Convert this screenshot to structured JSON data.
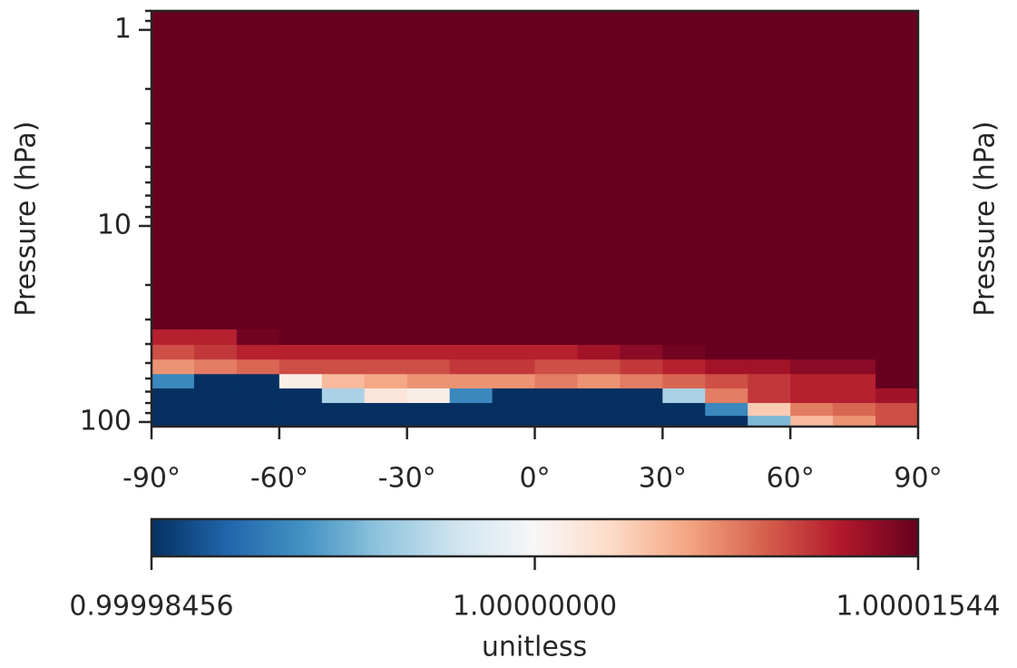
{
  "chart_data": {
    "type": "heatmap",
    "ylabel": "Pressure (hPa)",
    "y2label": "Pressure (hPa)",
    "colorbar_label": "unitless",
    "x_bins": [
      -90,
      -80,
      -70,
      -60,
      -50,
      -40,
      -30,
      -20,
      -10,
      0,
      10,
      20,
      30,
      40,
      50,
      60,
      70,
      80,
      90
    ],
    "y_bins": [
      0.8,
      33.7,
      40.4,
      48,
      57,
      67.4,
      80,
      93,
      105.5
    ],
    "values": [
      [
        1.00002,
        1.00002,
        1.00002,
        1.00002,
        1.00002,
        1.00002,
        1.00002,
        1.00002,
        1.00002,
        1.00002,
        1.00002,
        1.00002,
        1.00002,
        1.00002,
        1.00002,
        1.00002,
        1.00002,
        1.00002
      ],
      [
        1.000012,
        1.000012,
        1.000015,
        1.000016,
        1.000016,
        1.000016,
        1.000016,
        1.000016,
        1.000016,
        1.000016,
        1.000016,
        1.000016,
        1.000016,
        1.000017,
        1.000018,
        1.000018,
        1.000018,
        1.000018
      ],
      [
        1.00001,
        1.000011,
        1.000012,
        1.000012,
        1.000012,
        1.000012,
        1.000012,
        1.000012,
        1.000012,
        1.000012,
        1.000013,
        1.000014,
        1.000015,
        1.000016,
        1.000017,
        1.000017,
        1.000017,
        1.000018
      ],
      [
        1.000007,
        1.000008,
        1.000009,
        1.00001,
        1.00001,
        1.00001,
        1.00001,
        1.000011,
        1.000011,
        1.00001,
        1.00001,
        1.000011,
        1.000012,
        1.000013,
        1.000013,
        1.000014,
        1.000014,
        1.000017
      ],
      [
        0.99999,
        0.99998,
        0.99998,
        1.000001,
        1.000005,
        1.000006,
        1.000007,
        1.000007,
        1.000007,
        1.000008,
        1.000007,
        1.000008,
        1.000009,
        1.00001,
        1.000011,
        1.000012,
        1.000012,
        1.000016
      ],
      [
        0.99998,
        0.99998,
        0.99998,
        0.99998,
        0.999995,
        1.000002,
        1.000001,
        0.99999,
        0.99998,
        0.99998,
        0.99998,
        0.99998,
        0.999995,
        1.000008,
        1.000011,
        1.000012,
        1.000012,
        1.000013
      ],
      [
        0.99998,
        0.99998,
        0.99998,
        0.99998,
        0.99998,
        0.99998,
        0.99998,
        0.99998,
        0.99998,
        0.99998,
        0.99998,
        0.99998,
        0.99998,
        0.99999,
        1.000004,
        1.000008,
        1.000009,
        1.00001
      ],
      [
        0.99998,
        0.99998,
        0.99998,
        0.99998,
        0.99998,
        0.99998,
        0.99998,
        0.99998,
        0.99998,
        0.99998,
        0.99998,
        0.99998,
        0.99998,
        0.99998,
        0.999993,
        1.000005,
        1.000007,
        1.00001
      ]
    ],
    "xlim": [
      -90,
      90
    ],
    "xticks": [
      {
        "value": -90,
        "label": "-90°"
      },
      {
        "value": -60,
        "label": "-60°"
      },
      {
        "value": -30,
        "label": "-30°"
      },
      {
        "value": 0,
        "label": "0°"
      },
      {
        "value": 30,
        "label": "30°"
      },
      {
        "value": 60,
        "label": "60°"
      },
      {
        "value": 90,
        "label": "90°"
      }
    ],
    "ylim": [
      0.8,
      105.5
    ],
    "yscale": "log",
    "yinverted": true,
    "yticks": [
      1,
      10,
      100
    ],
    "yminorticks": [
      0.8,
      0.9,
      2,
      3,
      4,
      5,
      6,
      7,
      8,
      9,
      20,
      30,
      40,
      50,
      60,
      70,
      80,
      90
    ],
    "clim": [
      0.99998456,
      1.00001544
    ],
    "cticks": [
      0.99998456,
      {
        "value": 1.0,
        "label": "1.00000000"
      },
      1.00001544
    ],
    "colormap": [
      "#053061",
      "#2166ac",
      "#4393c3",
      "#92c5de",
      "#d1e5f0",
      "#f7f7f7",
      "#fddbc7",
      "#f4a582",
      "#d6604d",
      "#b2182b",
      "#67001f"
    ]
  }
}
